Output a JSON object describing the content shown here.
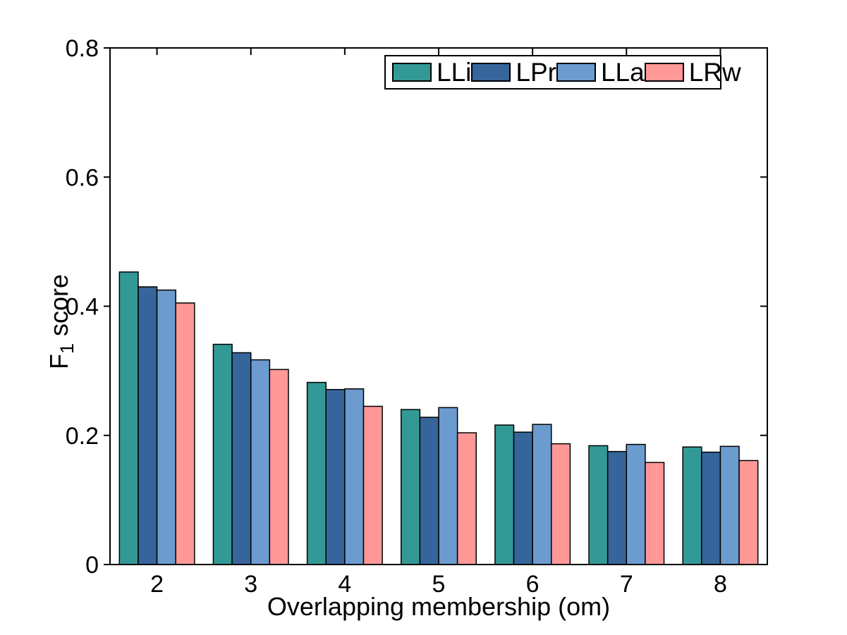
{
  "figure": {
    "background": "#ffffff"
  },
  "chart_data": {
    "type": "bar",
    "title": "",
    "xlabel": "Overlapping membership (om)",
    "ylabel": "F_1 score",
    "ylabel_parts": {
      "base": "F",
      "sub": "1",
      "rest": " score"
    },
    "categories": [
      "2",
      "3",
      "4",
      "5",
      "6",
      "7",
      "8"
    ],
    "y_ticks": [
      {
        "value": 0.0,
        "label": "0"
      },
      {
        "value": 0.2,
        "label": "0.2"
      },
      {
        "value": 0.4,
        "label": "0.4"
      },
      {
        "value": 0.6,
        "label": "0.6"
      },
      {
        "value": 0.8,
        "label": "0.8"
      }
    ],
    "ylim": [
      0,
      0.8
    ],
    "grid": false,
    "legend_position": "top-inside",
    "bar_group_fraction": 0.8,
    "axis_color": "#000000",
    "bar_edge_color": "#000000",
    "series": [
      {
        "name": "LLi",
        "color": "#339996",
        "values": [
          0.453,
          0.341,
          0.282,
          0.24,
          0.216,
          0.184,
          0.182
        ]
      },
      {
        "name": "LPr",
        "color": "#36659B",
        "values": [
          0.43,
          0.328,
          0.271,
          0.228,
          0.205,
          0.175,
          0.174
        ]
      },
      {
        "name": "LLa",
        "color": "#6C9BCF",
        "values": [
          0.425,
          0.317,
          0.272,
          0.243,
          0.217,
          0.186,
          0.183
        ]
      },
      {
        "name": "LRw",
        "color": "#FF9896",
        "values": [
          0.405,
          0.302,
          0.245,
          0.204,
          0.187,
          0.158,
          0.161
        ]
      }
    ]
  }
}
